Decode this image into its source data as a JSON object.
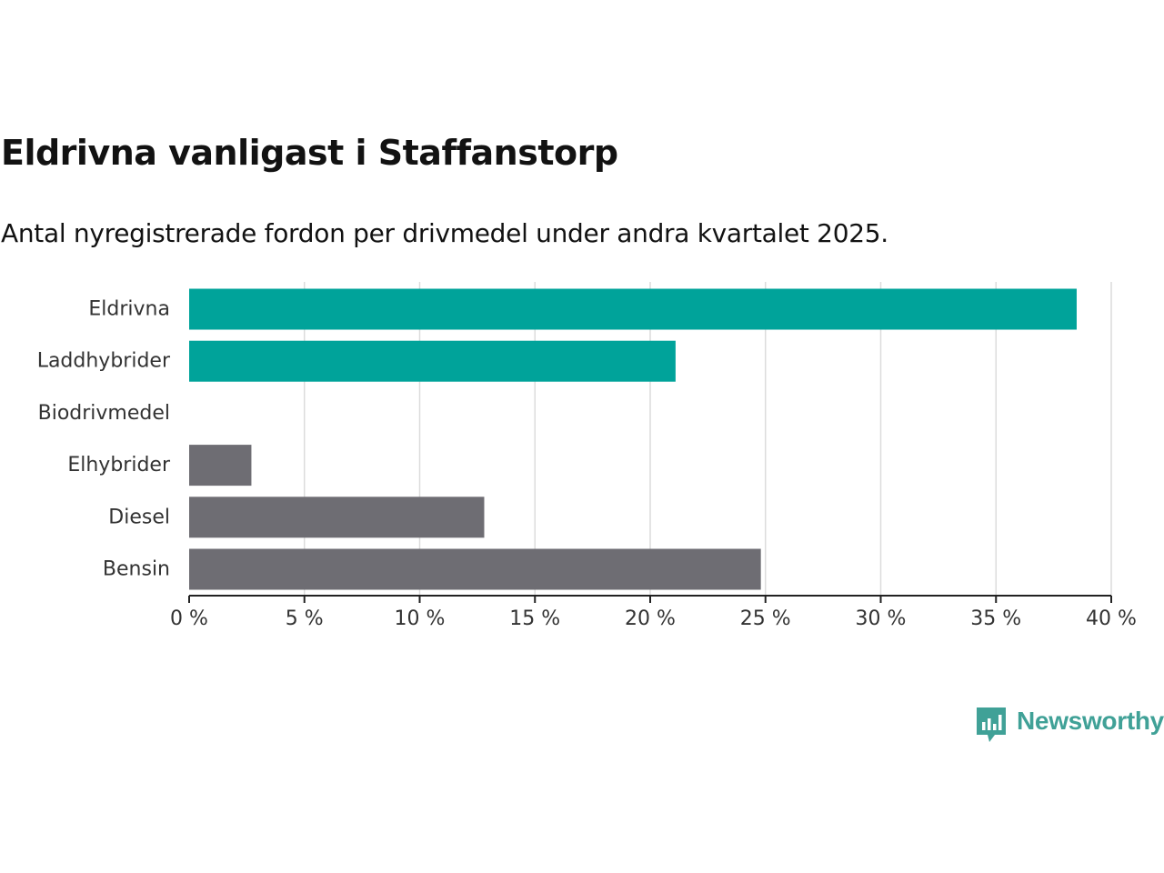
{
  "title": "Eldrivna vanligast i Staffanstorp",
  "subtitle": "Antal nyregistrerade fordon per drivmedel under andra kvartalet 2025.",
  "brand": {
    "name": "Newsworthy",
    "icon": "newsworthy-logo-icon",
    "color": "#40a197"
  },
  "chart_data": {
    "type": "bar",
    "orientation": "horizontal",
    "categories": [
      "Eldrivna",
      "Laddhybrider",
      "Biodrivmedel",
      "Elhybrider",
      "Diesel",
      "Bensin"
    ],
    "values": [
      38.5,
      21.1,
      0,
      2.7,
      12.8,
      24.8
    ],
    "colors": [
      "#00a39a",
      "#00a39a",
      "#00a39a",
      "#6e6d73",
      "#6e6d73",
      "#6e6d73"
    ],
    "xlim": [
      0,
      40
    ],
    "xticks": [
      0,
      5,
      10,
      15,
      20,
      25,
      30,
      35,
      40
    ],
    "xtick_labels": [
      "0 %",
      "5 %",
      "10 %",
      "15 %",
      "20 %",
      "25 %",
      "30 %",
      "35 %",
      "40 %"
    ],
    "grid": "vertical",
    "unit": "%"
  }
}
